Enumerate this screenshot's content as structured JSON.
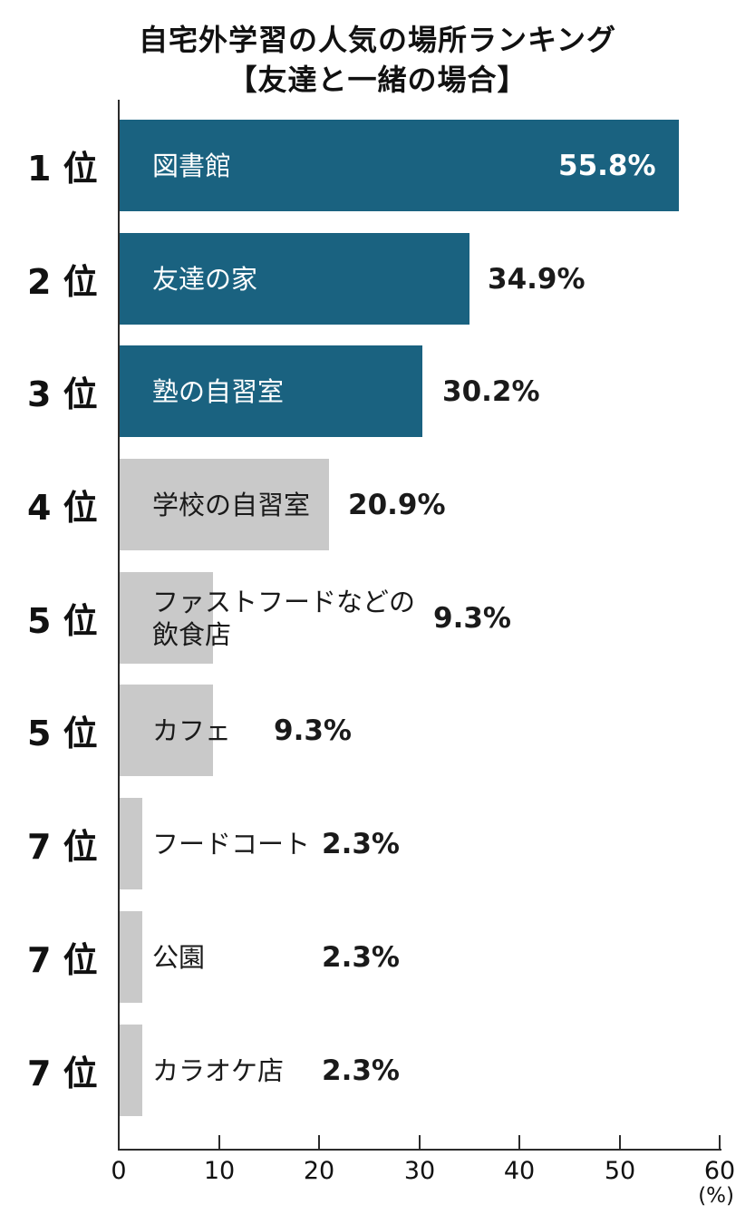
{
  "title": {
    "line1": "自宅外学習の人気の場所ランキング",
    "line2": "【友達と一緒の場合】"
  },
  "chart_data": {
    "type": "bar",
    "orientation": "horizontal",
    "title": "自宅外学習の人気の場所ランキング【友達と一緒の場合】",
    "unit": "%",
    "xlim": [
      0,
      60
    ],
    "grid": false,
    "colors": {
      "highlight_bar": "#1A6280",
      "muted_bar": "#C9C9C9",
      "text": "#111111",
      "label_on_highlight": "#ffffff"
    },
    "axis": {
      "ticks": [
        "0",
        "10",
        "20",
        "30",
        "40",
        "50",
        "60"
      ],
      "tick_values": [
        0,
        10,
        20,
        30,
        40,
        50,
        60
      ],
      "unit_label": "(%)"
    },
    "rows": [
      {
        "rank": "1 位",
        "label": "図書館",
        "value": 55.8,
        "value_label": "55.8%",
        "emphasis": true
      },
      {
        "rank": "2 位",
        "label": "友達の家",
        "value": 34.9,
        "value_label": "34.9%",
        "emphasis": true
      },
      {
        "rank": "3 位",
        "label": "塾の自習室",
        "value": 30.2,
        "value_label": "30.2%",
        "emphasis": true
      },
      {
        "rank": "4 位",
        "label": "学校の自習室",
        "value": 20.9,
        "value_label": "20.9%",
        "emphasis": false
      },
      {
        "rank": "5 位",
        "label": "ファストフードなどの\n飲食店",
        "value": 9.3,
        "value_label": "9.3%",
        "emphasis": false
      },
      {
        "rank": "5 位",
        "label": "カフェ",
        "value": 9.3,
        "value_label": "9.3%",
        "emphasis": false
      },
      {
        "rank": "7 位",
        "label": "フードコート",
        "value": 2.3,
        "value_label": "2.3%",
        "emphasis": false
      },
      {
        "rank": "7 位",
        "label": "公園",
        "value": 2.3,
        "value_label": "2.3%",
        "emphasis": false
      },
      {
        "rank": "7 位",
        "label": "カラオケ店",
        "value": 2.3,
        "value_label": "2.3%",
        "emphasis": false
      }
    ]
  }
}
